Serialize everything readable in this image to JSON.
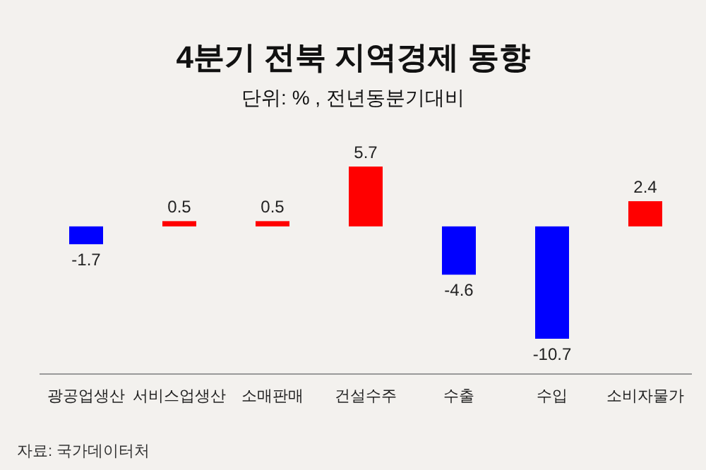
{
  "chart_data": {
    "type": "bar",
    "title": "4분기 전북 지역경제 동향",
    "subtitle": "단위: % , 전년동분기대비",
    "categories": [
      "광공업생산",
      "서비스업생산",
      "소매판매",
      "건설수주",
      "수출",
      "수입",
      "소비자물가"
    ],
    "values": [
      -1.7,
      0.5,
      0.5,
      5.7,
      -4.6,
      -10.7,
      2.4
    ],
    "colors": [
      "#0000ff",
      "#ff0000",
      "#ff0000",
      "#ff0000",
      "#0000ff",
      "#0000ff",
      "#ff0000"
    ],
    "data_labels": true,
    "annotations": [
      "자료: 국가데이터처"
    ]
  }
}
